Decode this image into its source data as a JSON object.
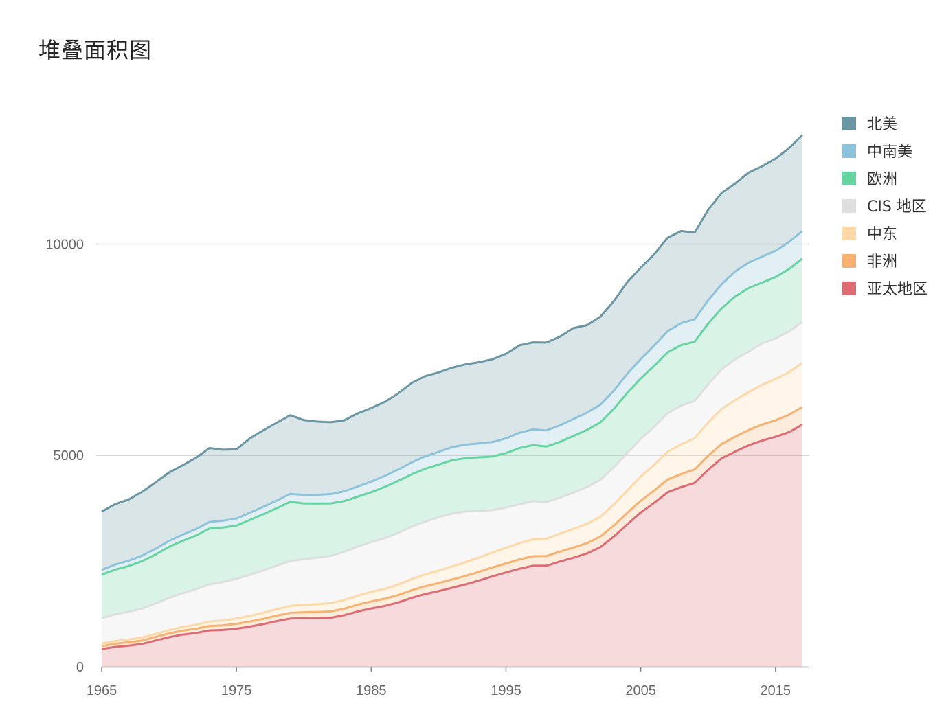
{
  "title": "堆叠面积图",
  "chart_data": {
    "type": "area",
    "stacked": true,
    "title": "堆叠面积图",
    "xlabel": "",
    "ylabel": "",
    "x": [
      1965,
      1966,
      1967,
      1968,
      1969,
      1970,
      1971,
      1972,
      1973,
      1974,
      1975,
      1976,
      1977,
      1978,
      1979,
      1980,
      1981,
      1982,
      1983,
      1984,
      1985,
      1986,
      1987,
      1988,
      1989,
      1990,
      1991,
      1992,
      1993,
      1994,
      1995,
      1996,
      1997,
      1998,
      1999,
      2000,
      2001,
      2002,
      2003,
      2004,
      2005,
      2006,
      2007,
      2008,
      2009,
      2010,
      2011,
      2012,
      2013,
      2014,
      2015,
      2016,
      2017
    ],
    "xlim": [
      1965,
      2017
    ],
    "ylim": [
      0,
      13500
    ],
    "x_ticks": [
      1965,
      1975,
      1985,
      1995,
      2005,
      2015
    ],
    "y_ticks": [
      0,
      5000,
      10000
    ],
    "grid": true,
    "legend_position": "right",
    "series": [
      {
        "name": "亚太地区",
        "color": "#dd6b74",
        "values": [
          420,
          470,
          500,
          540,
          620,
          700,
          760,
          800,
          860,
          870,
          900,
          950,
          1010,
          1080,
          1140,
          1150,
          1150,
          1160,
          1220,
          1310,
          1380,
          1440,
          1520,
          1630,
          1720,
          1790,
          1870,
          1950,
          2040,
          2140,
          2230,
          2320,
          2390,
          2390,
          2490,
          2580,
          2680,
          2830,
          3080,
          3370,
          3650,
          3880,
          4130,
          4250,
          4350,
          4660,
          4930,
          5090,
          5240,
          5350,
          5440,
          5550,
          5730
        ]
      },
      {
        "name": "非洲",
        "color": "#f7b171",
        "values": [
          70,
          75,
          78,
          80,
          85,
          90,
          95,
          100,
          105,
          110,
          115,
          120,
          125,
          130,
          135,
          140,
          145,
          150,
          155,
          160,
          165,
          170,
          175,
          180,
          185,
          190,
          195,
          200,
          205,
          210,
          215,
          220,
          225,
          230,
          235,
          240,
          245,
          250,
          260,
          270,
          280,
          290,
          300,
          310,
          320,
          330,
          340,
          350,
          360,
          380,
          390,
          410,
          420
        ]
      },
      {
        "name": "中东",
        "color": "#ffd8a8",
        "values": [
          60,
          62,
          65,
          68,
          72,
          78,
          85,
          95,
          105,
          115,
          125,
          135,
          145,
          155,
          165,
          175,
          185,
          195,
          205,
          215,
          225,
          235,
          250,
          265,
          280,
          295,
          310,
          325,
          340,
          355,
          370,
          385,
          400,
          410,
          425,
          440,
          455,
          470,
          500,
          530,
          570,
          610,
          660,
          700,
          740,
          790,
          830,
          870,
          900,
          940,
          980,
          1010,
          1040
        ]
      },
      {
        "name": "CIS 地区",
        "color": "#dedede",
        "values": [
          600,
          630,
          660,
          690,
          720,
          760,
          800,
          840,
          880,
          910,
          940,
          970,
          1000,
          1030,
          1060,
          1080,
          1100,
          1120,
          1140,
          1160,
          1180,
          1200,
          1220,
          1240,
          1250,
          1260,
          1250,
          1200,
          1100,
          1000,
          950,
          920,
          900,
          870,
          850,
          860,
          870,
          870,
          880,
          890,
          890,
          900,
          910,
          920,
          880,
          900,
          940,
          960,
          960,
          980,
          960,
          960,
          970
        ]
      },
      {
        "name": "欧洲",
        "color": "#66d4a0",
        "values": [
          1030,
          1060,
          1080,
          1120,
          1160,
          1210,
          1240,
          1270,
          1320,
          1290,
          1260,
          1300,
          1330,
          1360,
          1400,
          1320,
          1280,
          1240,
          1200,
          1180,
          1180,
          1210,
          1230,
          1240,
          1250,
          1250,
          1260,
          1260,
          1270,
          1270,
          1290,
          1330,
          1330,
          1310,
          1320,
          1340,
          1350,
          1360,
          1380,
          1420,
          1430,
          1440,
          1440,
          1430,
          1400,
          1440,
          1440,
          1490,
          1500,
          1440,
          1450,
          1480,
          1500
        ]
      },
      {
        "name": "中南美",
        "color": "#8cc2dc",
        "values": [
          110,
          120,
          125,
          130,
          135,
          140,
          145,
          150,
          155,
          160,
          165,
          170,
          175,
          180,
          190,
          200,
          210,
          220,
          230,
          240,
          250,
          260,
          270,
          280,
          290,
          300,
          310,
          320,
          330,
          340,
          350,
          360,
          370,
          380,
          390,
          400,
          410,
          420,
          430,
          450,
          460,
          480,
          500,
          520,
          530,
          550,
          570,
          590,
          600,
          610,
          620,
          640,
          650
        ]
      },
      {
        "name": "北美",
        "color": "#6a96a4",
        "values": [
          1380,
          1430,
          1450,
          1510,
          1570,
          1620,
          1640,
          1690,
          1750,
          1680,
          1640,
          1760,
          1810,
          1840,
          1860,
          1770,
          1730,
          1700,
          1680,
          1730,
          1740,
          1750,
          1800,
          1880,
          1900,
          1880,
          1880,
          1900,
          1920,
          1960,
          2000,
          2070,
          2060,
          2080,
          2100,
          2150,
          2070,
          2080,
          2120,
          2170,
          2160,
          2160,
          2210,
          2180,
          2050,
          2140,
          2160,
          2080,
          2130,
          2140,
          2180,
          2220,
          2270
        ]
      }
    ]
  }
}
